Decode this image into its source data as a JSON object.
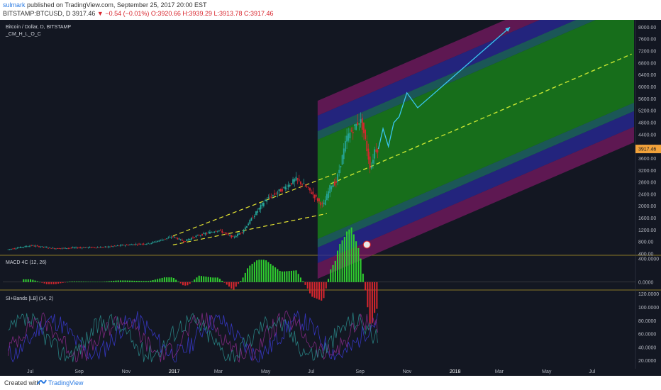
{
  "header": {
    "author": "sulmark",
    "published": " published on TradingView.com, September 25, 2017 20:00 EST",
    "symbol": "BITSTAMP:BTCUSD, D",
    "last": "3917.46",
    "change": "▼ −0.54 (−0.01%)",
    "ohlc": "O:3920.66 H:3939.29 L:3913.78 C:3917.46"
  },
  "footer": {
    "created_with": "Created with",
    "brand": "TradingView"
  },
  "colors": {
    "background": "#131722",
    "bull": "#26a69a",
    "bear": "#d9262e",
    "projection": "#39c6f0",
    "channel_center": "#c8e632",
    "wedge": "#e6e632",
    "green_band": "#1a8c1a",
    "blue_band": "#2a2a9c",
    "magenta_band": "#9c1a7a"
  },
  "chart_data": [
    {
      "type": "line",
      "title": "Bitcoin / Dollar, D, BITSTAMP",
      "subtitle": "_CM_H_L_O_C",
      "price_label": "3917.46",
      "x": [
        "2016-06-01",
        "2016-07-01",
        "2016-08-01",
        "2016-09-01",
        "2016-10-01",
        "2016-11-01",
        "2016-12-01",
        "2017-01-01",
        "2017-01-15",
        "2017-02-01",
        "2017-03-01",
        "2017-03-20",
        "2017-04-01",
        "2017-05-01",
        "2017-05-25",
        "2017-06-10",
        "2017-06-25",
        "2017-07-15",
        "2017-07-25",
        "2017-08-01",
        "2017-08-15",
        "2017-09-01",
        "2017-09-05",
        "2017-09-15",
        "2017-09-20",
        "2017-09-25"
      ],
      "series": [
        {
          "values": [
            550,
            680,
            580,
            610,
            620,
            700,
            750,
            980,
            820,
            1000,
            1200,
            950,
            1150,
            2200,
            2600,
            2900,
            2600,
            2000,
            2700,
            2800,
            4300,
            4900,
            4600,
            3200,
            3900,
            3917
          ]
        }
      ],
      "projection": {
        "x": [
          "2017-09-25",
          "2017-10-01",
          "2017-10-08",
          "2017-10-15",
          "2017-10-22",
          "2017-11-01",
          "2017-11-15",
          "2018-03-15"
        ],
        "values": [
          3917,
          4600,
          4000,
          4800,
          5000,
          5800,
          5300,
          8000
        ]
      },
      "channel": {
        "center_start": [
          "2017-07-25",
          2750
        ],
        "center_end": [
          "2018-08-20",
          7100
        ]
      },
      "x_tick_labels": [
        "Jul",
        "Sep",
        "Nov",
        "2017",
        "Mar",
        "May",
        "Jul",
        "Sep",
        "Nov",
        "2018",
        "Mar",
        "May",
        "Jul"
      ],
      "y_tick_labels": [
        "8000.00",
        "7600.00",
        "7200.00",
        "6800.00",
        "6400.00",
        "6000.00",
        "5600.00",
        "5200.00",
        "4800.00",
        "4400.00",
        "4000.00",
        "3600.00",
        "3200.00",
        "2800.00",
        "2400.00",
        "2000.00",
        "1600.00",
        "1200.00",
        "800.00",
        "400.00"
      ],
      "ylim": [
        400,
        8200
      ]
    },
    {
      "type": "bar",
      "title": "MACD 4C (12, 26)",
      "y_tick_labels": [
        "400.0000",
        "0.0000"
      ],
      "ylim": [
        -100,
        450
      ]
    },
    {
      "type": "line",
      "title": "SI+Bands [LB] (14, 2)",
      "y_tick_labels": [
        "120.0000",
        "100.0000",
        "80.0000",
        "60.0000",
        "40.0000",
        "20.0000"
      ],
      "ylim": [
        10,
        125
      ]
    }
  ]
}
